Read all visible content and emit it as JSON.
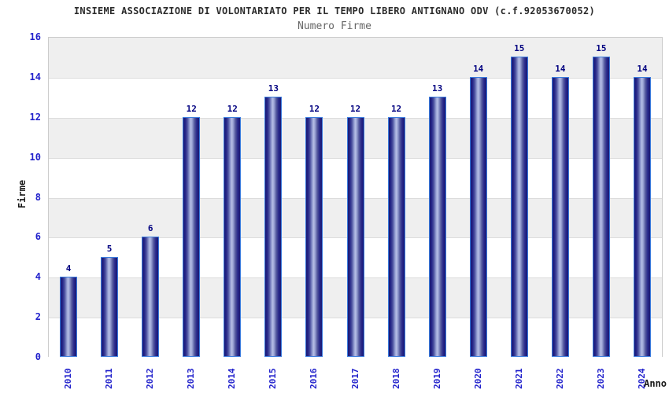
{
  "header": {
    "title": "INSIEME ASSOCIAZIONE DI VOLONTARIATO PER IL TEMPO LIBERO ANTIGNANO ODV (c.f.92053670052)",
    "subtitle": "Numero Firme"
  },
  "chart_data": {
    "type": "bar",
    "title": "INSIEME ASSOCIAZIONE DI VOLONTARIATO PER IL TEMPO LIBERO ANTIGNANO ODV (c.f.92053670052)",
    "subtitle": "Numero Firme",
    "xlabel": "Anno",
    "ylabel": "Firme",
    "categories": [
      "2010",
      "2011",
      "2012",
      "2013",
      "2014",
      "2015",
      "2016",
      "2017",
      "2018",
      "2019",
      "2020",
      "2021",
      "2022",
      "2023",
      "2024"
    ],
    "values": [
      4,
      5,
      6,
      12,
      12,
      13,
      12,
      12,
      12,
      13,
      14,
      15,
      14,
      15,
      14
    ],
    "ylim": [
      0,
      16
    ],
    "yticks": [
      0,
      2,
      4,
      6,
      8,
      10,
      12,
      14,
      16
    ],
    "grid": "horizontal alternating bands",
    "legend": "none",
    "data_labels": true,
    "x_tick_rotation": 90,
    "colors": {
      "bar_dark": "#191975",
      "bar_highlight": "#b6bfe6",
      "bar_border": "#3a7bdd",
      "axis_tick_label": "#2222cc",
      "value_label": "#000080",
      "title": "#2b2b2b",
      "subtitle": "#666666",
      "band_gray": "#efefef",
      "band_white": "#ffffff",
      "gridline": "#dcdcdc"
    }
  }
}
